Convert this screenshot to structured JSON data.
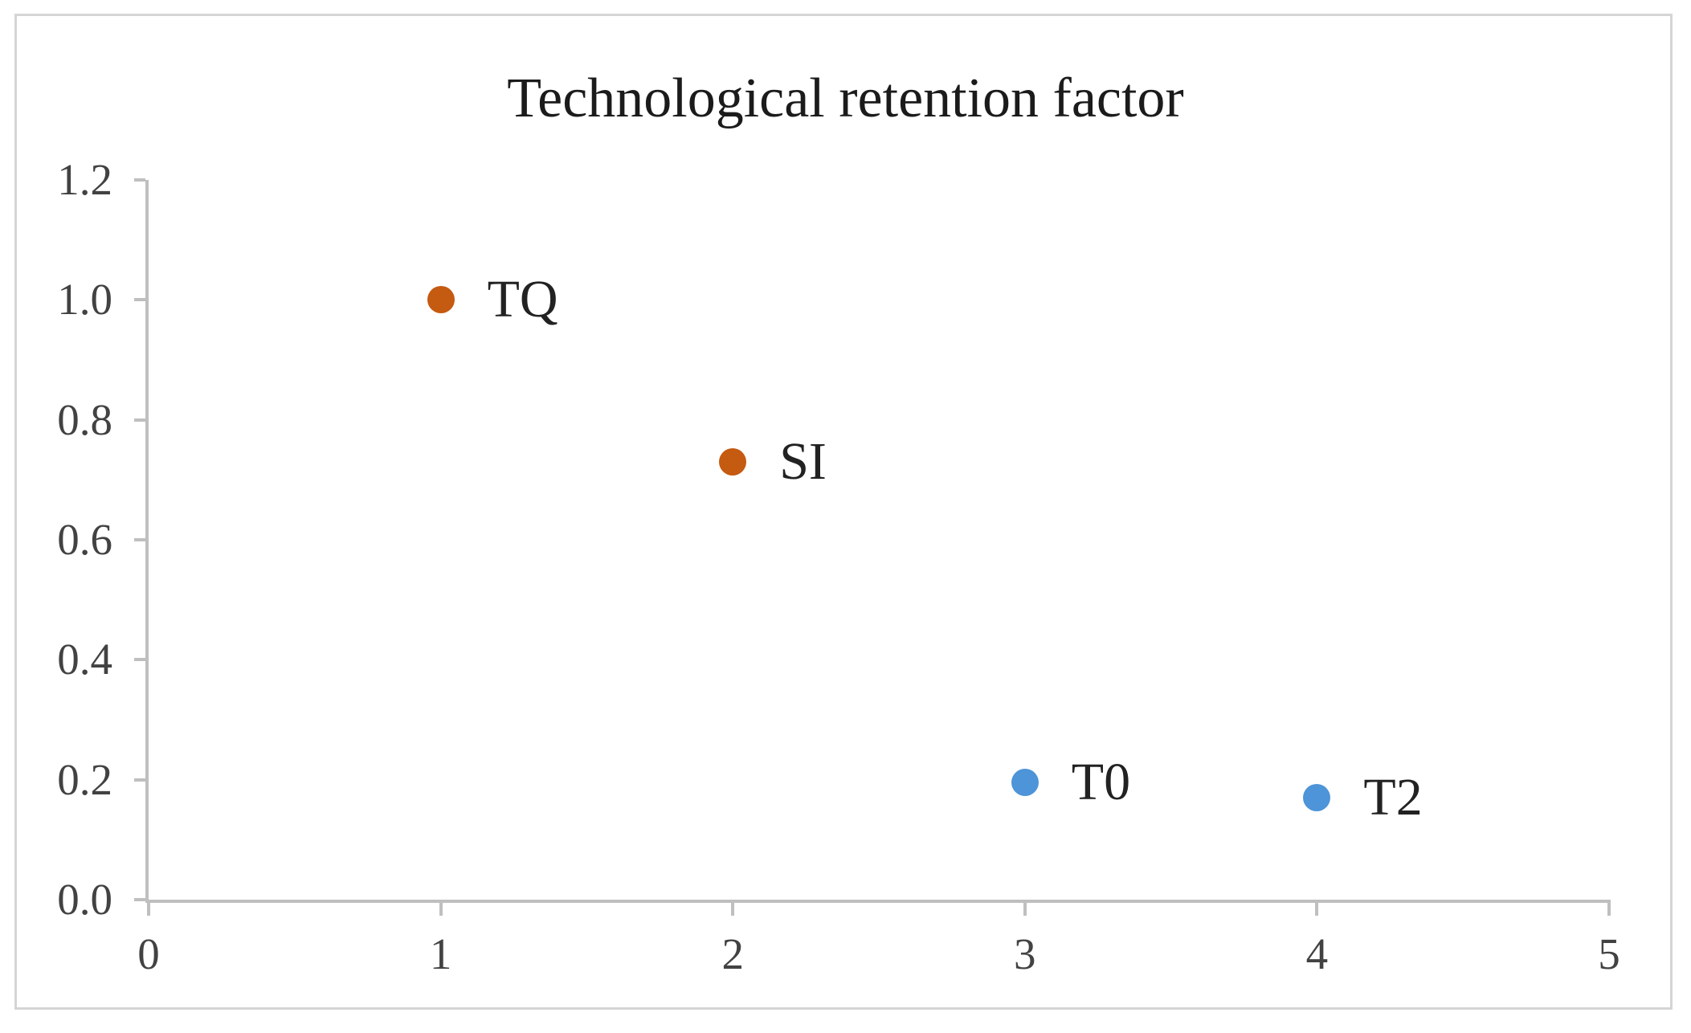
{
  "chart_data": {
    "type": "scatter",
    "title": "Technological retention factor",
    "xlabel": "",
    "ylabel": "",
    "xlim": [
      0,
      5
    ],
    "ylim": [
      0,
      1.2
    ],
    "x_ticks": [
      "0",
      "1",
      "2",
      "3",
      "4",
      "5"
    ],
    "y_ticks": [
      "0.0",
      "0.2",
      "0.4",
      "0.6",
      "0.8",
      "1.0",
      "1.2"
    ],
    "grid": false,
    "legend": false,
    "series": [
      {
        "name": "orange-points",
        "color": "#C55A11",
        "points": [
          {
            "label": "TQ",
            "x": 1,
            "y": 1.0
          },
          {
            "label": "SI",
            "x": 2,
            "y": 0.73
          }
        ]
      },
      {
        "name": "blue-points",
        "color": "#4D94D8",
        "points": [
          {
            "label": "T0",
            "x": 3,
            "y": 0.195
          },
          {
            "label": "T2",
            "x": 4,
            "y": 0.17
          }
        ]
      }
    ]
  },
  "style": {
    "background": "#FFFFFF",
    "border_color": "#D5D5D5",
    "axis_color": "#BFBFBF",
    "tick_label_color": "#424242",
    "title_color": "#1B1B1B",
    "point_label_color": "#222222"
  }
}
